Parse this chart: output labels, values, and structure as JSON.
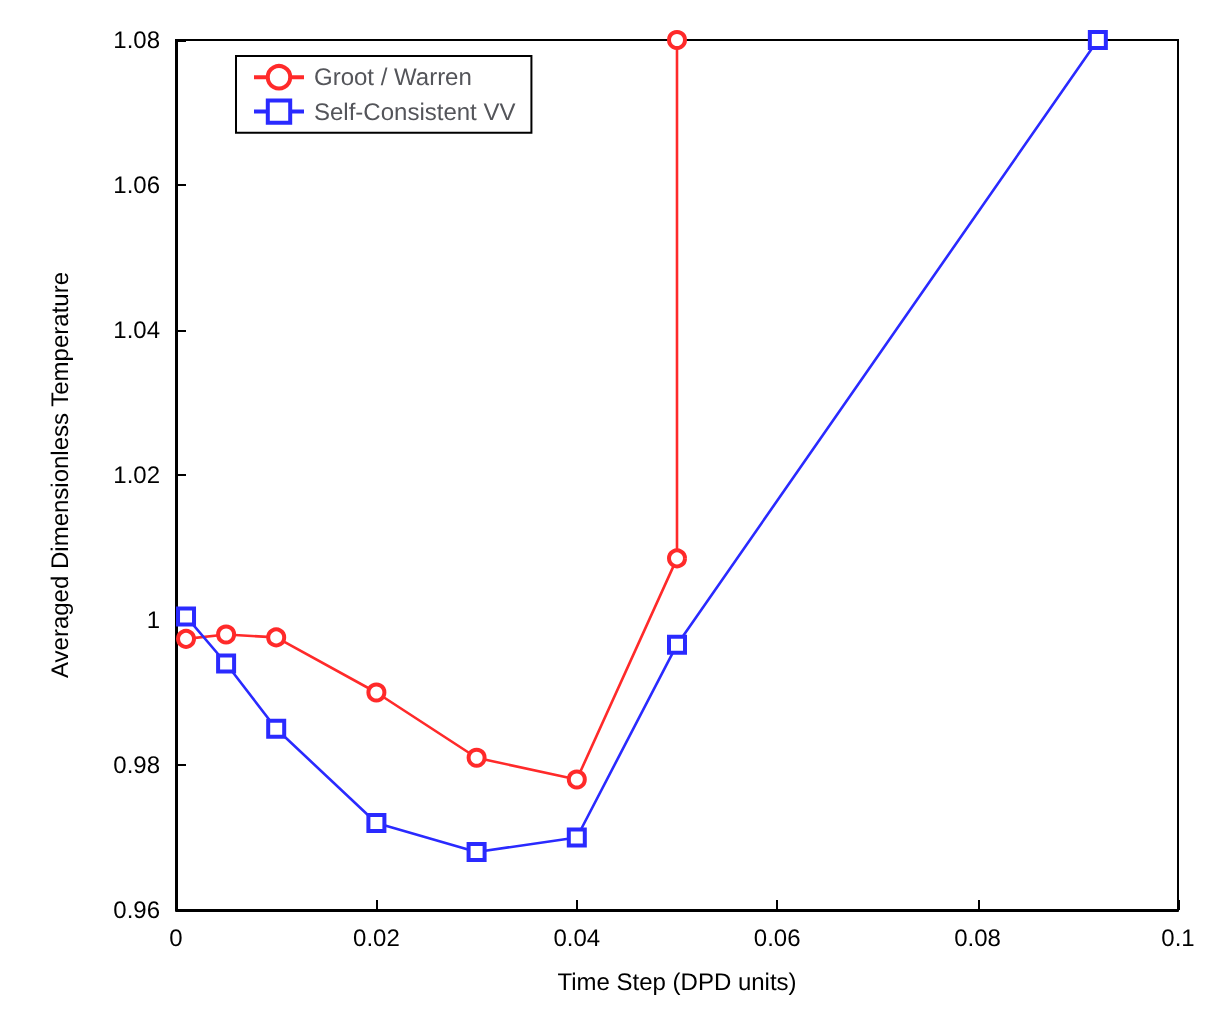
{
  "chart_data": {
    "type": "line",
    "xlabel": "Time Step (DPD units)",
    "ylabel": "Averaged Dimensionless Temperature",
    "series": [
      {
        "name": "Groot / Warren",
        "color": "#ff2a2a",
        "marker": "circle",
        "x": [
          0.001,
          0.005,
          0.01,
          0.02,
          0.03,
          0.04,
          0.05,
          0.05
        ],
        "values": [
          0.9974,
          0.998,
          0.9976,
          0.99,
          0.981,
          0.978,
          1.0085,
          1.08
        ]
      },
      {
        "name": "Self-Consistent VV",
        "color": "#2a2aff",
        "marker": "square",
        "x": [
          0.001,
          0.005,
          0.01,
          0.02,
          0.03,
          0.04,
          0.05,
          0.092
        ],
        "values": [
          1.0005,
          0.994,
          0.985,
          0.972,
          0.968,
          0.97,
          0.9966,
          1.08
        ]
      }
    ],
    "xlim": [
      0,
      0.1
    ],
    "xticks": [
      0,
      0.02,
      0.04,
      0.06,
      0.08,
      0.1
    ],
    "ylim": [
      0.96,
      1.08
    ],
    "yticks": [
      0.96,
      0.98,
      1,
      1.02,
      1.04,
      1.06,
      1.08
    ],
    "grid": false,
    "legend": "top left",
    "line_style": "solid"
  }
}
